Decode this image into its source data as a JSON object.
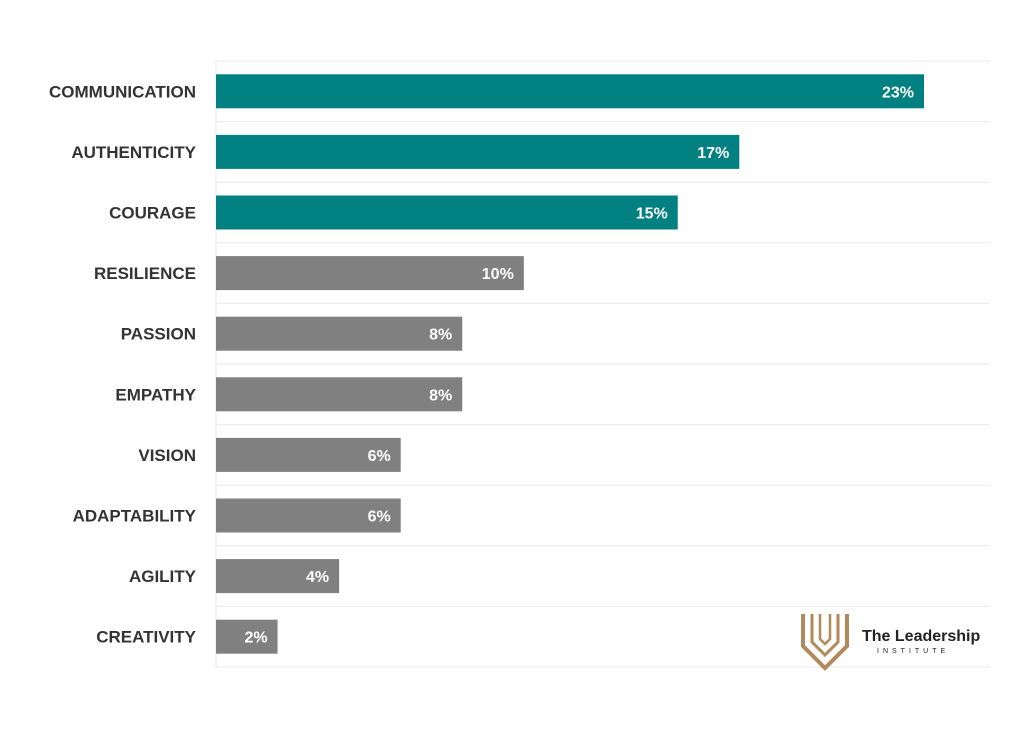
{
  "chart_data": {
    "type": "bar",
    "orientation": "horizontal",
    "title": "",
    "xlabel": "",
    "ylabel": "",
    "xlim": [
      0,
      24
    ],
    "grid": true,
    "categories": [
      "COMMUNICATION",
      "AUTHENTICITY",
      "COURAGE",
      "RESILIENCE",
      "PASSION",
      "EMPATHY",
      "VISION",
      "ADAPTABILITY",
      "AGILITY",
      "CREATIVITY"
    ],
    "values": [
      23,
      17,
      15,
      10,
      8,
      8,
      6,
      6,
      4,
      2
    ],
    "value_labels": [
      "23%",
      "17%",
      "15%",
      "10%",
      "8%",
      "8%",
      "6%",
      "6%",
      "4%",
      "2%"
    ],
    "highlight_count": 3,
    "colors": {
      "highlight": "#008080",
      "default": "#808080",
      "grid": "#e8e8e8"
    }
  },
  "logo": {
    "title": "The Leadership",
    "subtitle": "INSTITUTE",
    "icon": "shield-icon",
    "color": "#b08a5a"
  }
}
